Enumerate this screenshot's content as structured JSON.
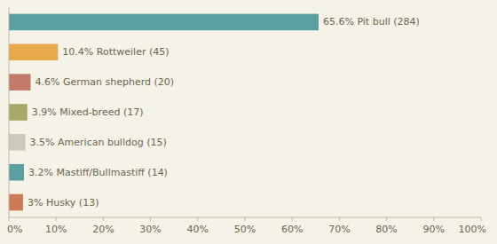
{
  "chart_data": {
    "type": "bar",
    "orientation": "horizontal",
    "categories": [
      "Pit bull",
      "Rottweiler",
      "German shepherd",
      "Mixed-breed",
      "American bulldog",
      "Mastiff/Bullmastiff",
      "Husky"
    ],
    "values": [
      65.6,
      10.4,
      4.6,
      3.9,
      3.5,
      3.2,
      3.0
    ],
    "value_labels": [
      "65.6% Pit bull (284)",
      "10.4% Rottweiler (45)",
      "4.6% German shepherd (20)",
      "3.9% Mixed-breed (17)",
      "3.5% American bulldog (15)",
      "3.2% Mastiff/Bullmastiff (14)",
      "3% Husky (13)"
    ],
    "colors": [
      "#5b9fa0",
      "#e8a84c",
      "#c47a6a",
      "#a8a868",
      "#ccccbb",
      "#5b9fa0",
      "#cc7a58"
    ],
    "xlim": [
      0,
      100
    ],
    "xticks": [
      {
        "value": 0,
        "label": "0%"
      },
      {
        "value": 10,
        "label": "10%"
      },
      {
        "value": 20,
        "label": "20%"
      },
      {
        "value": 30,
        "label": "30%"
      },
      {
        "value": 40,
        "label": "40%"
      },
      {
        "value": 50,
        "label": "50%"
      },
      {
        "value": 60,
        "label": "60%"
      },
      {
        "value": 70,
        "label": "70%"
      },
      {
        "value": 80,
        "label": "80%"
      },
      {
        "value": 90,
        "label": "90%"
      },
      {
        "value": 100,
        "label": "100%"
      }
    ],
    "data_labels": true,
    "tick_labels": "x",
    "grid": false
  }
}
